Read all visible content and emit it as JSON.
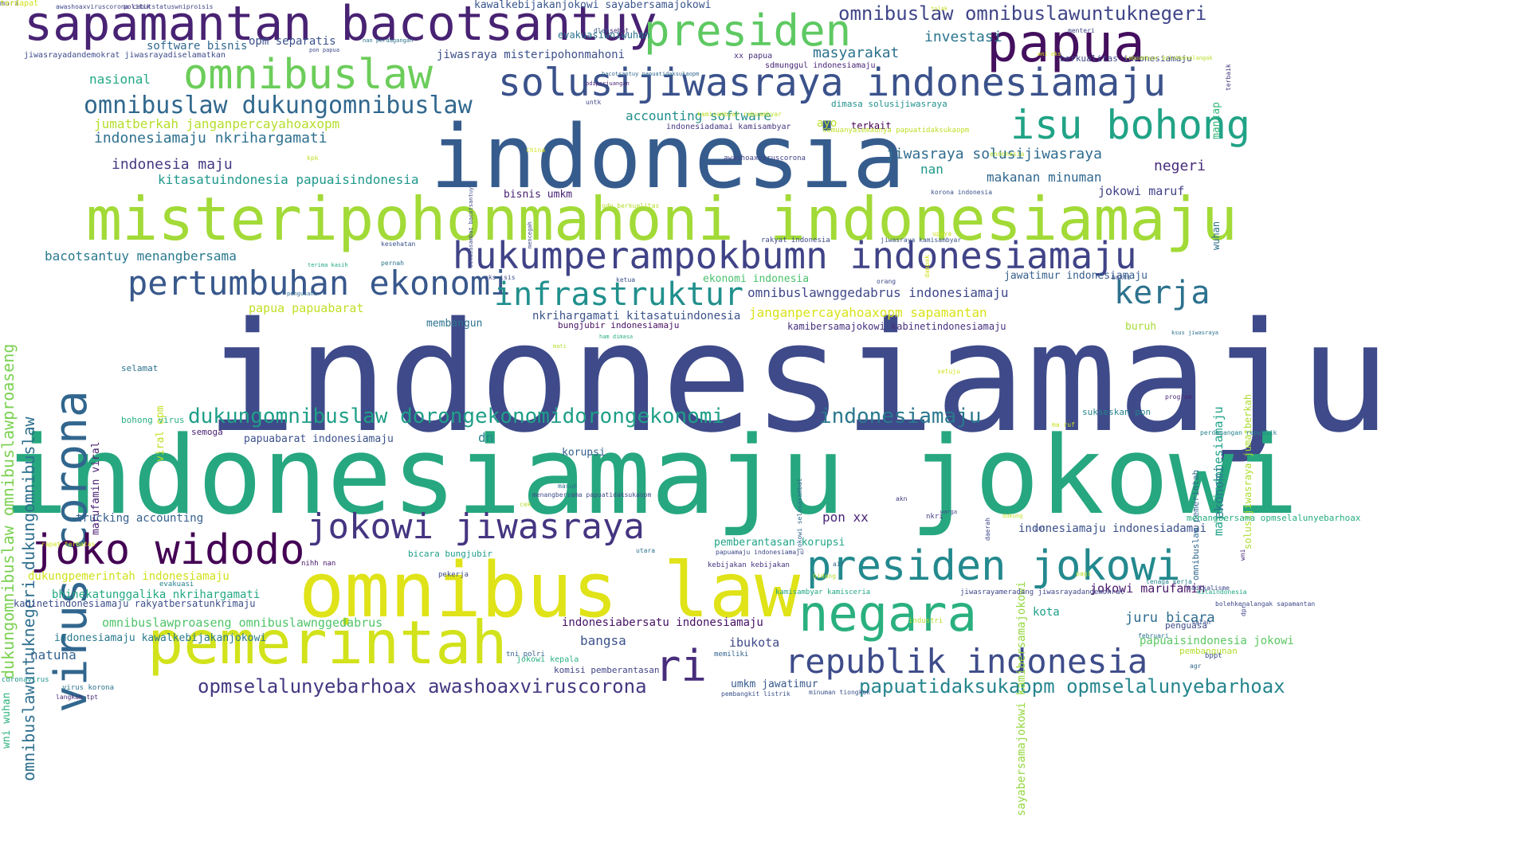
{
  "words": [
    {
      "text": "indonesiamaju",
      "color": "#3e4a89"
    },
    {
      "text": "indonesiamaju jokowi",
      "color": "#26a77f"
    },
    {
      "text": "indonesia",
      "color": "#365c8d"
    },
    {
      "text": "misteripohonmahoni indonesiamaju",
      "color": "#a2da37"
    },
    {
      "text": "omnibus law",
      "color": "#dfe318"
    },
    {
      "text": "pemerintah",
      "color": "#d2e21b"
    },
    {
      "text": "papua",
      "color": "#440f5e"
    },
    {
      "text": "sapamantan bacotsantuy",
      "color": "#482273"
    },
    {
      "text": "presiden",
      "color": "#5ec962"
    },
    {
      "text": "omnibuslaw",
      "color": "#6ccd5a"
    },
    {
      "text": "solusijiwasraya indonesiamaju",
      "color": "#3b528b"
    },
    {
      "text": "isu bohong",
      "color": "#20a386"
    },
    {
      "text": "hukumperampokbumn indonesiamaju",
      "color": "#404387"
    },
    {
      "text": "pertumbuhan ekonomi",
      "color": "#38588c"
    },
    {
      "text": "infrastruktur",
      "color": "#21908d"
    },
    {
      "text": "kerja",
      "color": "#2c728e"
    },
    {
      "text": "virus corona",
      "color": "#31668e"
    },
    {
      "text": "joko widodo",
      "color": "#440154"
    },
    {
      "text": "jokowi jiwasraya",
      "color": "#453581"
    },
    {
      "text": "presiden jokowi",
      "color": "#23898e"
    },
    {
      "text": "negara",
      "color": "#2ab07f"
    },
    {
      "text": "republik indonesia",
      "color": "#3e4c8a"
    },
    {
      "text": "ri",
      "color": "#472d7b"
    },
    {
      "text": "omnibuslaw dukungomnibuslaw",
      "color": "#31688e"
    },
    {
      "text": "dukungomnibuslaw dorongekonomidorongekonomi",
      "color": "#1f9f88"
    },
    {
      "text": "indonesiamaju",
      "color": "#2a788e"
    },
    {
      "text": "omnibuslaw omnibuslawuntuknegeri",
      "color": "#404688"
    },
    {
      "text": "opmselalunyebarhoax awashoaxviruscorona",
      "color": "#453882"
    },
    {
      "text": "papuatidaksukaopm opmselalunyebarhoax",
      "color": "#25858e"
    },
    {
      "text": "dukungomnibuslaw omnibuslawproaseng",
      "color": "#7ad151"
    },
    {
      "text": "omnibuslawuntuknegeri dukungomnibuslaw",
      "color": "#2e6f8e"
    },
    {
      "text": "investasi",
      "color": "#2a768e"
    },
    {
      "text": "masyarakat",
      "color": "#2c718e"
    },
    {
      "text": "accounting software",
      "color": "#218f8d"
    },
    {
      "text": "nasional",
      "color": "#22a884"
    },
    {
      "text": "jumatberkah janganpercayahoaxopm",
      "color": "#b5de2b"
    },
    {
      "text": "indonesiamaju nkrihargamati",
      "color": "#2d708e"
    },
    {
      "text": "indonesia maju",
      "color": "#443a83"
    },
    {
      "text": "kitasatuindonesia papuaisindonesia",
      "color": "#1f988b"
    },
    {
      "text": "bacotsantuy menangbersama",
      "color": "#29798e"
    },
    {
      "text": "jiwasraya solusijiwasraya",
      "color": "#2f6c8e"
    },
    {
      "text": "makanan minuman",
      "color": "#31678e"
    },
    {
      "text": "jokowi maruf",
      "color": "#414287"
    },
    {
      "text": "negeri",
      "color": "#472c7a"
    },
    {
      "text": "nan",
      "color": "#1f998a"
    },
    {
      "text": "ayo",
      "color": "#b8de29"
    },
    {
      "text": "terkait",
      "color": "#440154"
    },
    {
      "text": "omnibuslawnggedabrus indonesiamaju",
      "color": "#3f4889"
    },
    {
      "text": "jawatimur indonesiamaju",
      "color": "#355e8d"
    },
    {
      "text": "ekonomi indonesia",
      "color": "#4ac16d"
    },
    {
      "text": "janganpercayahoaxopm sapamantan",
      "color": "#d8e219"
    },
    {
      "text": "kamibersamajokowi kabinetindonesiamaju",
      "color": "#46307e"
    },
    {
      "text": "nkrihargamati kitasatuindonesia",
      "color": "#3a538b"
    },
    {
      "text": "papua papuabarat",
      "color": "#c0df25"
    },
    {
      "text": "membangun",
      "color": "#2c728e"
    },
    {
      "text": "bungjubir indonesiamaju",
      "color": "#471063"
    },
    {
      "text": "buruh",
      "color": "#a8db34"
    },
    {
      "text": "maju indonesiamaju",
      "color": "#1fa188"
    },
    {
      "text": "ekonomi",
      "color": "#2a788e"
    },
    {
      "text": "papuabarat indonesiamaju",
      "color": "#3b528b"
    },
    {
      "text": "korupsi",
      "color": "#34618d"
    },
    {
      "text": "dn",
      "color": "#25858e"
    },
    {
      "text": "trucking accounting",
      "color": "#355f8d"
    },
    {
      "text": "pon xx",
      "color": "#482475"
    },
    {
      "text": "pemberantasan korupsi",
      "color": "#20a486"
    },
    {
      "text": "indonesiamaju indonesiadamai",
      "color": "#3b518b"
    },
    {
      "text": "jokowi marufamin",
      "color": "#481769"
    },
    {
      "text": "juru bicara",
      "color": "#2f6c8e"
    },
    {
      "text": "kota",
      "color": "#1f9f88"
    },
    {
      "text": "papuaisindonesia jokowi",
      "color": "#5cc863"
    },
    {
      "text": "indonesiabersatu indonesiamaju",
      "color": "#471164"
    },
    {
      "text": "ibukota",
      "color": "#3e4989"
    },
    {
      "text": "bangsa",
      "color": "#3b528b"
    },
    {
      "text": "umkm jawatimur",
      "color": "#38588c"
    },
    {
      "text": "omnibuslawproaseng omnibuslawnggedabrus",
      "color": "#4fc46a"
    },
    {
      "text": "bhinekatunggalika nkrihargamati",
      "color": "#23a983"
    },
    {
      "text": "kabinetindonesiamaju rakyatbersatunkrimaju",
      "color": "#3c4f8a"
    },
    {
      "text": "dukungpemerintah indonesiamaju",
      "color": "#d0e11c"
    },
    {
      "text": "indonesiamaju kawalkebijakanjokowi",
      "color": "#297a8e"
    },
    {
      "text": "natuna",
      "color": "#33638d"
    },
    {
      "text": "software bisnis",
      "color": "#31688e"
    },
    {
      "text": "opm separatis",
      "color": "#3b528b"
    },
    {
      "text": "evakuasiwniwuhan",
      "color": "#2c738e"
    },
    {
      "text": "jiwasraya misteripohonmahoni",
      "color": "#3c4f8a"
    },
    {
      "text": "kawalkebijakanjokowi sayabersamajokowi",
      "color": "#39558c"
    },
    {
      "text": "sdmunggul indonesiamaju",
      "color": "#482576"
    },
    {
      "text": "xx papua",
      "color": "#472f7d"
    },
    {
      "text": "berkualitas indonesiamaju",
      "color": "#3f4788"
    },
    {
      "text": "dimasa solusijiwasraya",
      "color": "#21918c"
    },
    {
      "text": "indonesiadamai kamisambyar",
      "color": "#453781"
    },
    {
      "text": "semuanyasemaunya papuatidaksukaopm",
      "color": "#bddf26"
    },
    {
      "text": "mantap",
      "color": "#35b779"
    },
    {
      "text": "wuhan",
      "color": "#2d708e"
    },
    {
      "text": "jiwasrayadandemokrat jiwasrayadiselamatkan",
      "color": "#3e4a89"
    },
    {
      "text": "bisnis umkm",
      "color": "#482071"
    },
    {
      "text": "viral opm",
      "color": "#c2df23"
    },
    {
      "text": "marufamin viral",
      "color": "#481f70"
    },
    {
      "text": "bohong virus",
      "color": "#2ab07f"
    },
    {
      "text": "selamat",
      "color": "#2c728e"
    },
    {
      "text": "semoga",
      "color": "#482071"
    },
    {
      "text": "sukseskan pon",
      "color": "#26828e"
    },
    {
      "text": "omnibuslaw pemerintah",
      "color": "#31678e"
    },
    {
      "text": "solusijiwasraya jumatberkah",
      "color": "#addc30"
    },
    {
      "text": "menangbersama opmselalunyebarhoax",
      "color": "#26ad81"
    },
    {
      "text": "wni wuhan",
      "color": "#2eb37c"
    },
    {
      "text": "sayabersamajokowi kamibersamajokowi",
      "color": "#95d840"
    },
    {
      "text": "pembangunan",
      "color": "#b2dd2d"
    },
    {
      "text": "coronavirus",
      "color": "#1f948c"
    },
    {
      "text": "komisi pemberantasan",
      "color": "#414487"
    },
    {
      "text": "bicara bungjubir",
      "color": "#1f9e89"
    },
    {
      "text": "industri",
      "color": "#b0dd2f"
    },
    {
      "text": "penguasa",
      "color": "#3e4a89"
    },
    {
      "text": "nkri",
      "color": "#433e85"
    },
    {
      "text": "jiwasrayameradang jiwasrayadandemokrat",
      "color": "#3f4788"
    },
    {
      "text": "kamisambyar kamisceria",
      "color": "#22a785"
    },
    {
      "text": "jokowi kepala",
      "color": "#2ab07f"
    },
    {
      "text": "nihh nan",
      "color": "#481467"
    },
    {
      "text": "kebijakan kebijakan",
      "color": "#46337f"
    },
    {
      "text": "papuamaju indonesiamaju",
      "color": "#3e4989"
    },
    {
      "text": "memiliki",
      "color": "#33638d"
    },
    {
      "text": "tni polri",
      "color": "#33638d"
    },
    {
      "text": "virus korona",
      "color": "#2c728e"
    },
    {
      "text": "langkah tpt",
      "color": "#482878"
    },
    {
      "text": "pembangkit listrik",
      "color": "#3b528b"
    },
    {
      "text": "minuman tiongkok",
      "color": "#3b528b"
    },
    {
      "text": "evakuasi",
      "color": "#26818e"
    },
    {
      "text": "awashoaxviruscorona cabutstatuswniproisis",
      "color": "#3f4889"
    },
    {
      "text": "politik",
      "color": "#453882"
    },
    {
      "text": "dlam",
      "color": "#39568c"
    },
    {
      "text": "sehat",
      "color": "#46337f"
    },
    {
      "text": "menteri",
      "color": "#414487"
    },
    {
      "text": "tolak",
      "color": "#c8e020"
    },
    {
      "text": "wni eks",
      "color": "#d8e219"
    },
    {
      "text": "pon papua",
      "color": "#3e4a89"
    },
    {
      "text": "nan perdagangan",
      "color": "#2c738e"
    },
    {
      "text": "bacotsantuy papuatidaksukaopm",
      "color": "#31688e"
    },
    {
      "text": "rabuambyar bolehkenalangak",
      "color": "#b8de29"
    },
    {
      "text": "terbaik",
      "color": "#453781"
    },
    {
      "text": "pdiperjuangan",
      "color": "#482576"
    },
    {
      "text": "untk",
      "color": "#3e4989"
    },
    {
      "text": "kamisambyar rabuambyar",
      "color": "#bddf26"
    },
    {
      "text": "awashoaxviruscorona",
      "color": "#414487"
    },
    {
      "text": "endonesia",
      "color": "#b5de2b"
    },
    {
      "text": "china",
      "color": "#d2e21b"
    },
    {
      "text": "kpk",
      "color": "#c2df23"
    },
    {
      "text": "selasasambat bacotsantuy",
      "color": "#3e4a89"
    },
    {
      "text": "korona indonesia",
      "color": "#3b528b"
    },
    {
      "text": "upaya",
      "color": "#c8e020"
    },
    {
      "text": "jiwasraya kamisambyar",
      "color": "#3b528b"
    },
    {
      "text": "dampak",
      "color": "#d2e21b"
    },
    {
      "text": "kesehatan",
      "color": "#3b528b"
    },
    {
      "text": "rakyat indonesia",
      "color": "#3e4a89"
    },
    {
      "text": "terima kasih",
      "color": "#22a785"
    },
    {
      "text": "pengusaha",
      "color": "#31688e"
    },
    {
      "text": "pernah",
      "color": "#2c728e"
    },
    {
      "text": "eks isis",
      "color": "#3e4a89"
    },
    {
      "text": "ketua",
      "color": "#3b528b"
    },
    {
      "text": "orang",
      "color": "#3e4989"
    },
    {
      "text": "ham dimasa",
      "color": "#2ab07f"
    },
    {
      "text": "ksus jiwasraya",
      "color": "#2c728e"
    },
    {
      "text": "mati",
      "color": "#b0dd2f"
    },
    {
      "text": "setuju",
      "color": "#d0e11c"
    },
    {
      "text": "program",
      "color": "#482878"
    },
    {
      "text": "ma ruf",
      "color": "#c8e020"
    },
    {
      "text": "perdagangan republik",
      "color": "#26828e"
    },
    {
      "text": "daerah",
      "color": "#3e4989"
    },
    {
      "text": "akn",
      "color": "#433e85"
    },
    {
      "text": "jokowi selasasambat",
      "color": "#31688e"
    },
    {
      "text": "masuk",
      "color": "#2c738e"
    },
    {
      "text": "menangbersama papuatidaksukaopm",
      "color": "#3e4a89"
    },
    {
      "text": "cek",
      "color": "#b5de2b"
    },
    {
      "text": "dukung",
      "color": "#c2df23"
    },
    {
      "text": "warga",
      "color": "#3e4989"
    },
    {
      "text": "unt",
      "color": "#3e4a89"
    },
    {
      "text": "utara",
      "color": "#2c728e"
    },
    {
      "text": "rapat terbatas",
      "color": "#d0e11c"
    },
    {
      "text": "air",
      "color": "#31688e"
    },
    {
      "text": "bidang",
      "color": "#b0dd2f"
    },
    {
      "text": "pagi",
      "color": "#b5de2b"
    },
    {
      "text": "tenaga kerja",
      "color": "#26828e"
    },
    {
      "text": "kitaindonesia",
      "color": "#22a785"
    },
    {
      "text": "radikalisme",
      "color": "#3e4989"
    },
    {
      "text": "bolehkenalangak sapamantan",
      "color": "#3e4a89"
    },
    {
      "text": "salah",
      "color": "#3b528b"
    },
    {
      "text": "februari",
      "color": "#2c738e"
    },
    {
      "text": "pekerja",
      "color": "#3e4989"
    },
    {
      "text": "bppt",
      "color": "#3b528b"
    },
    {
      "text": "agr",
      "color": "#31688e"
    },
    {
      "text": "dpr",
      "color": "#3e4a89"
    },
    {
      "text": "wni",
      "color": "#482878"
    },
    {
      "text": "mencegah",
      "color": "#3e4989"
    },
    {
      "text": "odn berkualitas",
      "color": "#b5de2b"
    },
    {
      "text": "bukti",
      "color": "#3b528b"
    },
    {
      "text": "mari",
      "color": "#3e4989"
    },
    {
      "text": "terdapat",
      "color": "#d2e21b"
    }
  ]
}
